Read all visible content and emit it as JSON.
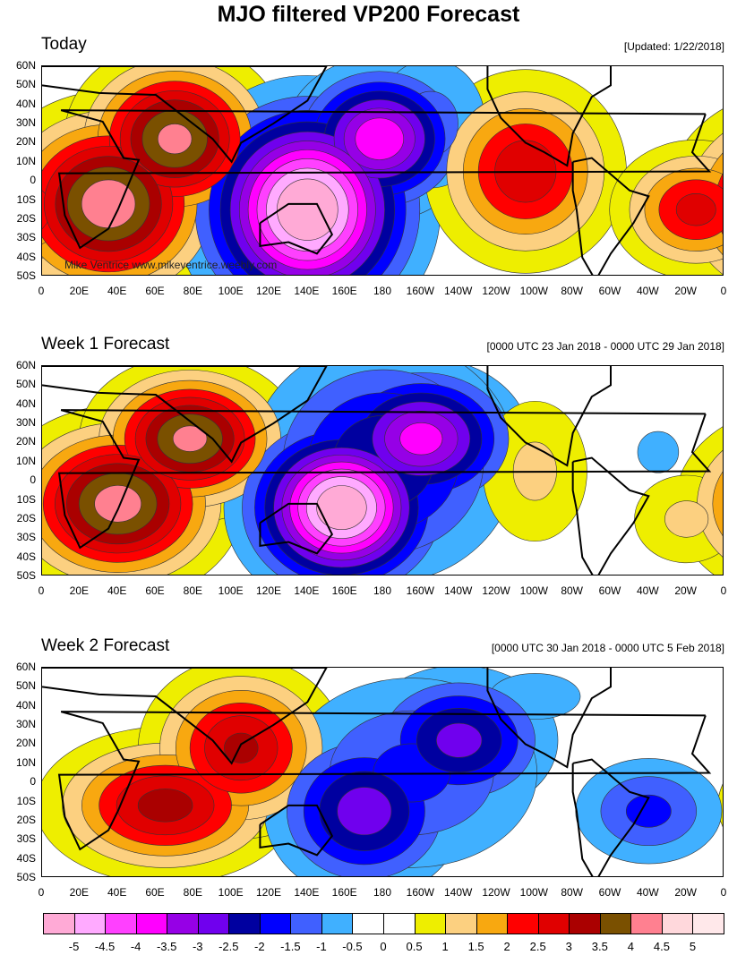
{
  "title": "MJO filtered VP200 Forecast",
  "watermark": "Mike Ventrice www.mikeventrice.weebly.com",
  "lat_labels": [
    "60N",
    "50N",
    "40N",
    "30N",
    "20N",
    "10N",
    "0",
    "10S",
    "20S",
    "30S",
    "40S",
    "50S"
  ],
  "lon_labels": [
    "0",
    "20E",
    "40E",
    "60E",
    "80E",
    "100E",
    "120E",
    "140E",
    "160E",
    "180",
    "160W",
    "140W",
    "120W",
    "100W",
    "80W",
    "60W",
    "40W",
    "20W",
    "0"
  ],
  "panels": [
    {
      "title": "Today",
      "info": "[Updated: 1/22/2018]",
      "anomalies": [
        {
          "lon": 35,
          "lat": -12,
          "value": 4.2,
          "extent_deg": [
            45,
            40
          ]
        },
        {
          "lon": 70,
          "lat": 22,
          "value": 4.0,
          "extent_deg": [
            40,
            35
          ]
        },
        {
          "lon": 140,
          "lat": -15,
          "value": -5.4,
          "extent_deg": [
            45,
            45
          ]
        },
        {
          "lon": 178,
          "lat": 22,
          "value": -3.8,
          "extent_deg": [
            35,
            30
          ]
        },
        {
          "lon": 255,
          "lat": 5,
          "value": 2.8,
          "extent_deg": [
            40,
            40
          ]
        },
        {
          "lon": 345,
          "lat": -15,
          "value": 2.6,
          "extent_deg": [
            35,
            28
          ]
        },
        {
          "lon": 205,
          "lat": 30,
          "value": -1.2,
          "extent_deg": [
            30,
            35
          ]
        }
      ]
    },
    {
      "title": "Week 1 Forecast",
      "info": "[0000 UTC 23 Jan 2018 - 0000 UTC 29 Jan 2018]",
      "anomalies": [
        {
          "lon": 40,
          "lat": -12,
          "value": 4.1,
          "extent_deg": [
            45,
            35
          ]
        },
        {
          "lon": 78,
          "lat": 22,
          "value": 4.0,
          "extent_deg": [
            40,
            30
          ]
        },
        {
          "lon": 158,
          "lat": -14,
          "value": -5.3,
          "extent_deg": [
            40,
            35
          ]
        },
        {
          "lon": 200,
          "lat": 22,
          "value": -3.6,
          "extent_deg": [
            40,
            30
          ]
        },
        {
          "lon": 180,
          "lat": 10,
          "value": -2.4,
          "extent_deg": [
            55,
            50
          ]
        },
        {
          "lon": 260,
          "lat": 5,
          "value": 1.1,
          "extent_deg": [
            30,
            40
          ]
        },
        {
          "lon": 340,
          "lat": -20,
          "value": 1.1,
          "extent_deg": [
            30,
            25
          ]
        },
        {
          "lon": 325,
          "lat": 15,
          "value": -0.8,
          "extent_deg": [
            15,
            15
          ]
        }
      ]
    },
    {
      "title": "Week 2 Forecast",
      "info": "[0000 UTC 30 Jan 2018 - 0000 UTC 5 Feb 2018]",
      "anomalies": [
        {
          "lon": 65,
          "lat": -12,
          "value": 3.1,
          "extent_deg": [
            50,
            30
          ]
        },
        {
          "lon": 105,
          "lat": 18,
          "value": 3.0,
          "extent_deg": [
            40,
            35
          ]
        },
        {
          "lon": 170,
          "lat": -15,
          "value": -2.7,
          "extent_deg": [
            40,
            35
          ]
        },
        {
          "lon": 220,
          "lat": 22,
          "value": -2.6,
          "extent_deg": [
            40,
            30
          ]
        },
        {
          "lon": 195,
          "lat": 5,
          "value": -1.6,
          "extent_deg": [
            60,
            45
          ]
        },
        {
          "lon": 320,
          "lat": -15,
          "value": -1.6,
          "extent_deg": [
            35,
            25
          ]
        },
        {
          "lon": 260,
          "lat": 45,
          "value": -0.9,
          "extent_deg": [
            30,
            15
          ]
        }
      ]
    }
  ],
  "colorbar": {
    "colors": [
      "#ffaad6",
      "#ffaaff",
      "#ff40ff",
      "#ff00ff",
      "#9600e6",
      "#7000ee",
      "#0000a0",
      "#0000ff",
      "#4060ff",
      "#40b0ff",
      "#ffffff",
      "#ffffff",
      "#eeee00",
      "#fcd080",
      "#f8a810",
      "#ff0000",
      "#e00000",
      "#aa0000",
      "#7a5000",
      "#ff8090",
      "#ffd8dc",
      "#ffe8ea"
    ],
    "labels": [
      "-5",
      "-4.5",
      "-4",
      "-3.5",
      "-3",
      "-2.5",
      "-2",
      "-1.5",
      "-1",
      "-0.5",
      "0",
      "0.5",
      "1",
      "1.5",
      "2",
      "2.5",
      "3",
      "3.5",
      "4",
      "4.5",
      "5"
    ]
  }
}
